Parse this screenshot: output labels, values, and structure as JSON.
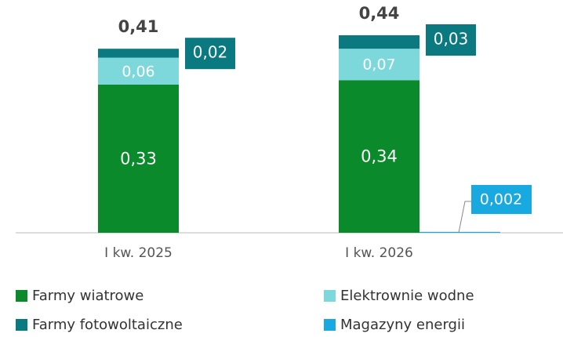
{
  "chart_data": {
    "type": "stacked-bar",
    "categories": [
      "I kw. 2025",
      "I kw. 2026"
    ],
    "series": [
      {
        "name": "Farmy wiatrowe",
        "color": "#0a8a2a",
        "values": [
          0.33,
          0.34
        ],
        "value_labels": [
          "0,33",
          "0,34"
        ]
      },
      {
        "name": "Elektrownie wodne",
        "color": "#7dd8dc",
        "values": [
          0.06,
          0.07
        ],
        "value_labels": [
          "0,06",
          "0,07"
        ]
      },
      {
        "name": "Farmy fotowoltaiczne",
        "color": "#0b7a80",
        "values": [
          0.02,
          0.03
        ],
        "value_labels": [
          "0,02",
          "0,03"
        ]
      },
      {
        "name": "Magazyny energii",
        "color": "#19a9e1",
        "values": [
          null,
          0.002
        ],
        "value_labels": [
          null,
          "0,002"
        ]
      }
    ],
    "totals": [
      0.41,
      0.44
    ],
    "total_labels": [
      "0,41",
      "0,44"
    ],
    "legend": "bottom"
  }
}
